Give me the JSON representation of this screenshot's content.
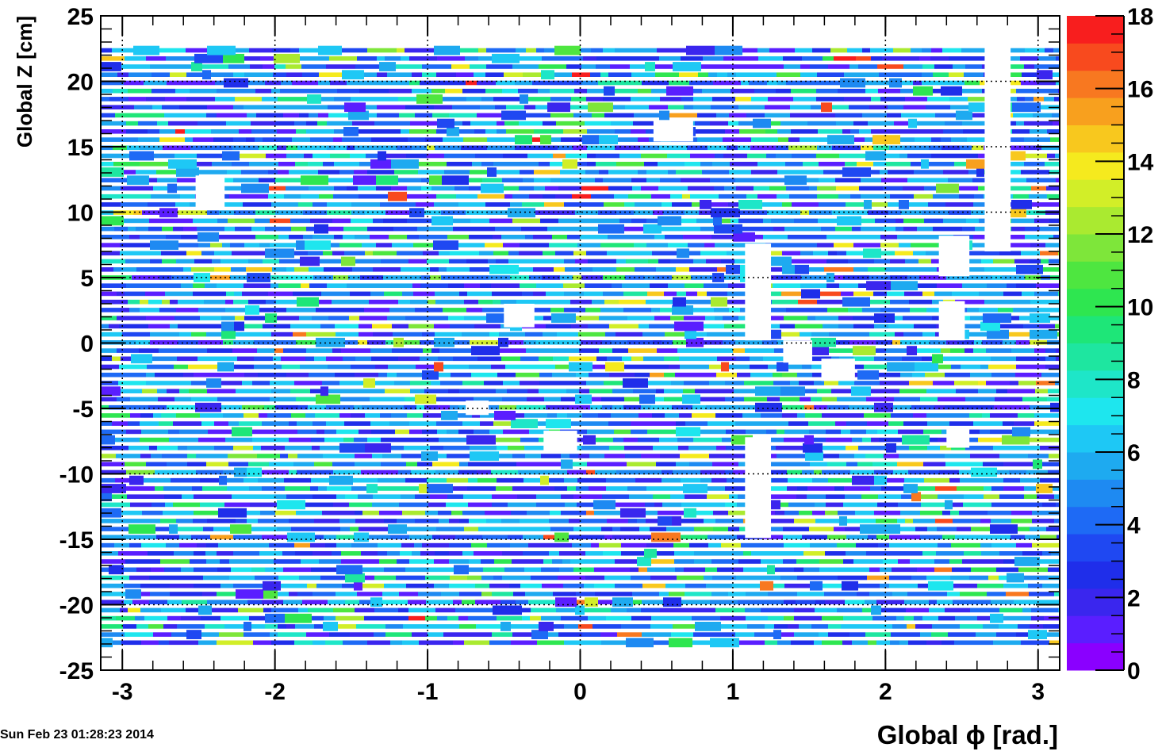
{
  "chart_data": {
    "type": "heatmap",
    "title": "",
    "xlabel": "Global ϕ [rad.]",
    "ylabel": "Global Z [cm]",
    "xlim": [
      -3.14159,
      3.14159
    ],
    "ylim": [
      -25,
      25
    ],
    "zlim": [
      0,
      18
    ],
    "x_ticks": [
      "-3",
      "-2",
      "-1",
      "0",
      "1",
      "2",
      "3"
    ],
    "x_tick_values": [
      -3,
      -2,
      -1,
      0,
      1,
      2,
      3
    ],
    "y_ticks": [
      "25",
      "20",
      "15",
      "10",
      "5",
      "0",
      "-5",
      "-10",
      "-15",
      "-20",
      "-25"
    ],
    "y_tick_values": [
      25,
      20,
      15,
      10,
      5,
      0,
      -5,
      -10,
      -15,
      -20,
      -25
    ],
    "z_ticks": [
      "18",
      "16",
      "14",
      "12",
      "10",
      "8",
      "6",
      "4",
      "2",
      "0"
    ],
    "z_tick_values": [
      18,
      16,
      14,
      12,
      10,
      8,
      6,
      4,
      2,
      0
    ],
    "grid": true,
    "palette": [
      "#8a00ff",
      "#5a1eff",
      "#3a26ee",
      "#1f2eea",
      "#1f48f2",
      "#1e6af5",
      "#1e8af2",
      "#1eaaf0",
      "#1ec8f5",
      "#1ee6ee",
      "#1ee6c8",
      "#1ee6a0",
      "#1ee678",
      "#2ee650",
      "#4ee640",
      "#7ee63a",
      "#aaea30",
      "#d2ee28",
      "#f5ea1e",
      "#f8c81e",
      "#f8a01e",
      "#f87820",
      "#f84a1e",
      "#f81e1e"
    ],
    "data_populated_z_range": [
      -22.9,
      22.9
    ],
    "strip_pitch_z": 0.62,
    "gaps": [
      {
        "phi": [
          -2.52,
          -2.33
        ],
        "z": [
          10.2,
          12.8
        ]
      },
      {
        "phi": [
          0.48,
          0.74
        ],
        "z": [
          15.4,
          17.0
        ]
      },
      {
        "phi": [
          2.65,
          2.82
        ],
        "z": [
          7.0,
          22.9
        ]
      },
      {
        "phi": [
          2.35,
          2.55
        ],
        "z": [
          5.1,
          8.2
        ]
      },
      {
        "phi": [
          2.35,
          2.52
        ],
        "z": [
          0.2,
          3.2
        ]
      },
      {
        "phi": [
          1.08,
          1.25
        ],
        "z": [
          0.2,
          7.6
        ]
      },
      {
        "phi": [
          1.33,
          1.52
        ],
        "z": [
          -1.5,
          0.2
        ]
      },
      {
        "phi": [
          1.58,
          1.8
        ],
        "z": [
          -2.9,
          -1.2
        ]
      },
      {
        "phi": [
          -0.5,
          -0.3
        ],
        "z": [
          1.2,
          3.0
        ]
      },
      {
        "phi": [
          -0.24,
          -0.02
        ],
        "z": [
          -8.3,
          -6.7
        ]
      },
      {
        "phi": [
          1.08,
          1.25
        ],
        "z": [
          -14.9,
          -7.2
        ]
      },
      {
        "phi": [
          2.4,
          2.55
        ],
        "z": [
          -8.0,
          -6.5
        ]
      },
      {
        "phi": [
          -0.75,
          -0.6
        ],
        "z": [
          -5.5,
          -4.4
        ]
      }
    ],
    "date_stamp": "Sun Feb 23 01:28:23 2014"
  }
}
